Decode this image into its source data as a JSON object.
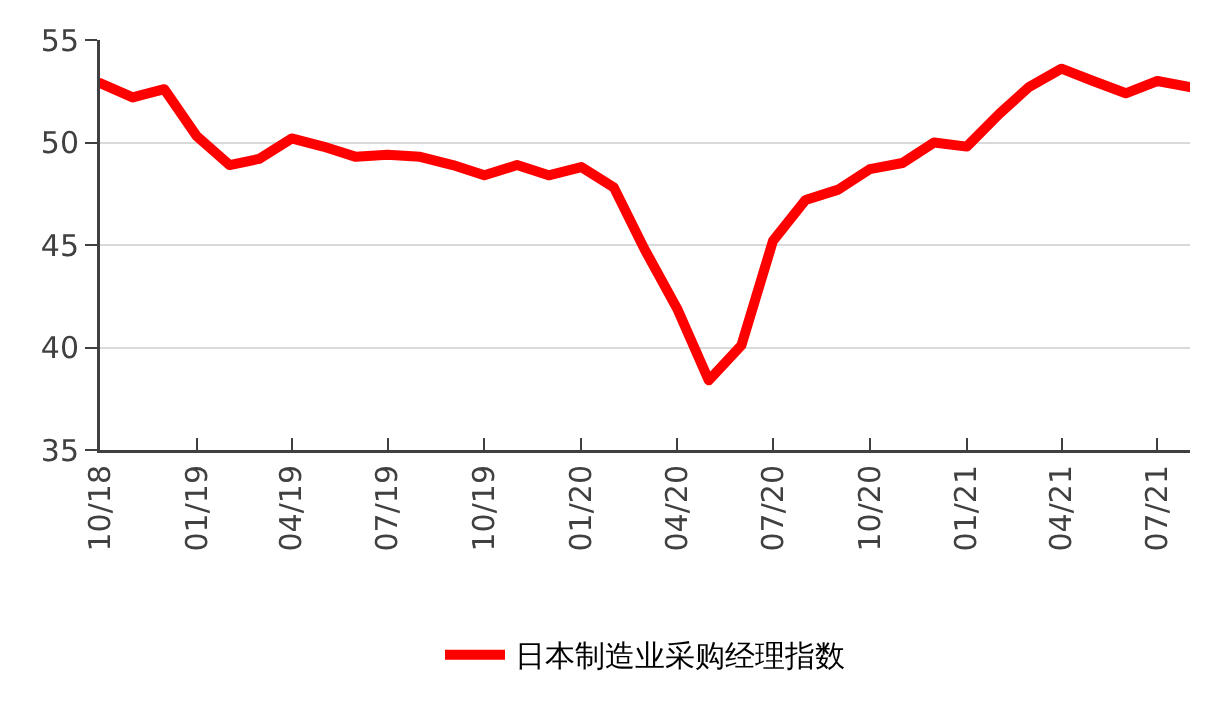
{
  "chart_data": {
    "type": "line",
    "x": [
      "2018-10",
      "2018-11",
      "2018-12",
      "2019-01",
      "2019-02",
      "2019-03",
      "2019-04",
      "2019-05",
      "2019-06",
      "2019-07",
      "2019-08",
      "2019-09",
      "2019-10",
      "2019-11",
      "2019-12",
      "2020-01",
      "2020-02",
      "2020-03",
      "2020-04",
      "2020-05",
      "2020-06",
      "2020-07",
      "2020-08",
      "2020-09",
      "2020-10",
      "2020-11",
      "2020-12",
      "2021-01",
      "2021-02",
      "2021-03",
      "2021-04",
      "2021-05",
      "2021-06",
      "2021-07",
      "2021-08"
    ],
    "series": [
      {
        "name": "日本制造业采购经理指数",
        "color": "#ff0000",
        "values": [
          52.9,
          52.2,
          52.6,
          50.3,
          48.9,
          49.2,
          50.2,
          49.8,
          49.3,
          49.4,
          49.3,
          48.9,
          48.4,
          48.9,
          48.4,
          48.8,
          47.8,
          44.8,
          41.9,
          38.4,
          40.1,
          45.2,
          47.2,
          47.7,
          48.7,
          49.0,
          50.0,
          49.8,
          51.4,
          52.7,
          53.6,
          53.0,
          52.4,
          53.0,
          52.7
        ]
      }
    ],
    "xlim": [
      "2018-10",
      "2021-08"
    ],
    "xticks": [
      {
        "value": "2018-10",
        "label": "10/18"
      },
      {
        "value": "2019-01",
        "label": "01/19"
      },
      {
        "value": "2019-04",
        "label": "04/19"
      },
      {
        "value": "2019-07",
        "label": "07/19"
      },
      {
        "value": "2019-10",
        "label": "10/19"
      },
      {
        "value": "2020-01",
        "label": "01/20"
      },
      {
        "value": "2020-04",
        "label": "04/20"
      },
      {
        "value": "2020-07",
        "label": "07/20"
      },
      {
        "value": "2020-10",
        "label": "10/20"
      },
      {
        "value": "2021-01",
        "label": "01/21"
      },
      {
        "value": "2021-04",
        "label": "04/21"
      },
      {
        "value": "2021-07",
        "label": "07/21"
      }
    ],
    "ylim": [
      35,
      55
    ],
    "yticks": [
      35,
      40,
      45,
      50,
      55
    ],
    "grid": "y",
    "legend": "bottom",
    "marker": "none",
    "line_style": "solid"
  }
}
